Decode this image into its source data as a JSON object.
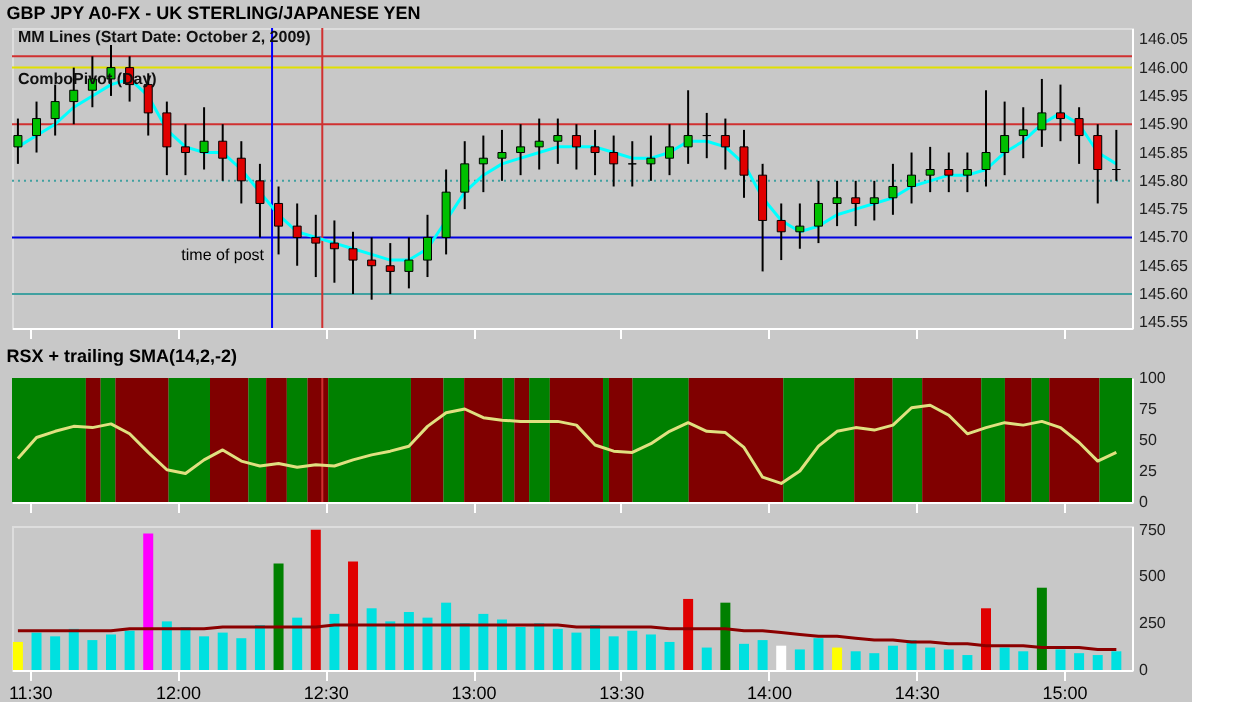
{
  "chart_data": [
    {
      "type": "candlestick",
      "title": "GBP JPY A0-FX - UK STERLING/JAPANESE YEN",
      "annotations": [
        "MM Lines (Start Date: October 2, 2009)",
        "ComboPivot (Day)"
      ],
      "x": [
        11.46,
        11.523,
        11.586,
        11.649,
        11.712,
        11.775,
        11.838,
        11.901,
        11.964,
        12.027,
        12.09,
        12.153,
        12.216,
        12.279,
        12.342,
        12.405,
        12.468,
        12.531,
        12.594,
        12.657,
        12.72,
        12.783,
        12.846,
        12.909,
        12.972,
        13.035,
        13.098,
        13.161,
        13.224,
        13.287,
        13.35,
        13.413,
        13.476,
        13.539,
        13.602,
        13.665,
        13.728,
        13.791,
        13.854,
        13.917,
        13.98,
        14.043,
        14.106,
        14.169,
        14.232,
        14.295,
        14.358,
        14.421,
        14.484,
        14.547,
        14.61,
        14.673,
        14.736,
        14.799,
        14.862,
        14.925,
        14.988,
        15.051,
        15.114,
        15.177
      ],
      "ohlc": [
        [
          145.86,
          145.91,
          145.83,
          145.88
        ],
        [
          145.88,
          145.94,
          145.85,
          145.91
        ],
        [
          145.91,
          145.97,
          145.88,
          145.94
        ],
        [
          145.94,
          146.0,
          145.9,
          145.96
        ],
        [
          145.96,
          146.02,
          145.93,
          145.98
        ],
        [
          145.98,
          146.04,
          145.95,
          146.0
        ],
        [
          146.0,
          146.02,
          145.94,
          145.97
        ],
        [
          145.97,
          145.99,
          145.88,
          145.92
        ],
        [
          145.92,
          145.94,
          145.81,
          145.86
        ],
        [
          145.86,
          145.9,
          145.81,
          145.85
        ],
        [
          145.85,
          145.93,
          145.82,
          145.87
        ],
        [
          145.87,
          145.9,
          145.8,
          145.84
        ],
        [
          145.84,
          145.87,
          145.76,
          145.8
        ],
        [
          145.8,
          145.83,
          145.7,
          145.76
        ],
        [
          145.76,
          145.79,
          145.67,
          145.72
        ],
        [
          145.72,
          145.76,
          145.65,
          145.7
        ],
        [
          145.7,
          145.74,
          145.63,
          145.69
        ],
        [
          145.69,
          145.73,
          145.62,
          145.68
        ],
        [
          145.68,
          145.71,
          145.6,
          145.66
        ],
        [
          145.66,
          145.7,
          145.59,
          145.65
        ],
        [
          145.65,
          145.69,
          145.6,
          145.64
        ],
        [
          145.64,
          145.7,
          145.61,
          145.66
        ],
        [
          145.66,
          145.74,
          145.63,
          145.7
        ],
        [
          145.7,
          145.82,
          145.67,
          145.78
        ],
        [
          145.78,
          145.87,
          145.75,
          145.83
        ],
        [
          145.83,
          145.88,
          145.78,
          145.84
        ],
        [
          145.84,
          145.89,
          145.8,
          145.85
        ],
        [
          145.85,
          145.9,
          145.81,
          145.86
        ],
        [
          145.86,
          145.91,
          145.82,
          145.87
        ],
        [
          145.87,
          145.91,
          145.83,
          145.88
        ],
        [
          145.88,
          145.9,
          145.82,
          145.86
        ],
        [
          145.86,
          145.89,
          145.81,
          145.85
        ],
        [
          145.85,
          145.88,
          145.79,
          145.83
        ],
        [
          145.83,
          145.87,
          145.79,
          145.83
        ],
        [
          145.83,
          145.88,
          145.8,
          145.84
        ],
        [
          145.84,
          145.9,
          145.81,
          145.86
        ],
        [
          145.86,
          145.96,
          145.83,
          145.88
        ],
        [
          145.88,
          145.92,
          145.84,
          145.88
        ],
        [
          145.88,
          145.91,
          145.82,
          145.86
        ],
        [
          145.86,
          145.89,
          145.77,
          145.81
        ],
        [
          145.81,
          145.83,
          145.64,
          145.73
        ],
        [
          145.73,
          145.76,
          145.66,
          145.71
        ],
        [
          145.71,
          145.76,
          145.68,
          145.72
        ],
        [
          145.72,
          145.8,
          145.69,
          145.76
        ],
        [
          145.76,
          145.8,
          145.72,
          145.77
        ],
        [
          145.77,
          145.8,
          145.72,
          145.76
        ],
        [
          145.76,
          145.8,
          145.73,
          145.77
        ],
        [
          145.77,
          145.83,
          145.74,
          145.79
        ],
        [
          145.79,
          145.85,
          145.76,
          145.81
        ],
        [
          145.81,
          145.86,
          145.78,
          145.82
        ],
        [
          145.82,
          145.85,
          145.78,
          145.81
        ],
        [
          145.81,
          145.85,
          145.78,
          145.82
        ],
        [
          145.82,
          145.96,
          145.79,
          145.85
        ],
        [
          145.85,
          145.94,
          145.81,
          145.88
        ],
        [
          145.88,
          145.93,
          145.84,
          145.89
        ],
        [
          145.89,
          145.98,
          145.86,
          145.92
        ],
        [
          145.92,
          145.97,
          145.87,
          145.91
        ],
        [
          145.91,
          145.93,
          145.83,
          145.88
        ],
        [
          145.88,
          145.9,
          145.76,
          145.82
        ],
        [
          145.82,
          145.89,
          145.8,
          145.82
        ]
      ],
      "colors": [
        "#00c000",
        "#00c000",
        "#00c000",
        "#00c000",
        "#00c000",
        "#00c000",
        "#e00000",
        "#e00000",
        "#e00000",
        "#e00000",
        "#00c000",
        "#e00000",
        "#e00000",
        "#e00000",
        "#e00000",
        "#e00000",
        "#e00000",
        "#e00000",
        "#e00000",
        "#e00000",
        "#e00000",
        "#00c000",
        "#00c000",
        "#00c000",
        "#00c000",
        "#00c000",
        "#00c000",
        "#00c000",
        "#00c000",
        "#00c000",
        "#e00000",
        "#e00000",
        "#e00000",
        "#000000",
        "#00c000",
        "#00c000",
        "#00c000",
        "#000000",
        "#e00000",
        "#e00000",
        "#e00000",
        "#e00000",
        "#00c000",
        "#00c000",
        "#00c000",
        "#e00000",
        "#00c000",
        "#00c000",
        "#00c000",
        "#00c000",
        "#e00000",
        "#00c000",
        "#00c000",
        "#00c000",
        "#00c000",
        "#00c000",
        "#e00000",
        "#e00000",
        "#e00000",
        "#000000"
      ],
      "series": [
        {
          "type": "line",
          "color": "#00ffff",
          "values": [
            145.86,
            145.88,
            145.9,
            145.93,
            145.95,
            145.97,
            145.98,
            145.95,
            145.89,
            145.86,
            145.85,
            145.85,
            145.82,
            145.78,
            145.74,
            145.71,
            145.7,
            145.69,
            145.68,
            145.67,
            145.66,
            145.66,
            145.68,
            145.73,
            145.78,
            145.81,
            145.83,
            145.84,
            145.85,
            145.86,
            145.86,
            145.86,
            145.85,
            145.84,
            145.84,
            145.85,
            145.87,
            145.87,
            145.86,
            145.83,
            145.77,
            145.73,
            145.71,
            145.72,
            145.74,
            145.75,
            145.76,
            145.77,
            145.79,
            145.8,
            145.81,
            145.81,
            145.82,
            145.85,
            145.87,
            145.9,
            145.92,
            145.9,
            145.85,
            145.83
          ]
        }
      ],
      "ref_lines": [
        {
          "axis": "y",
          "value": 146.02,
          "color": "#d03030"
        },
        {
          "axis": "y",
          "value": 146.0,
          "color": "#e0e000"
        },
        {
          "axis": "y",
          "value": 145.9,
          "color": "#d03030"
        },
        {
          "axis": "y",
          "value": 145.8,
          "color": "#40a0a0",
          "line_style": "dotted"
        },
        {
          "axis": "y",
          "value": 145.7,
          "color": "#0000e0"
        },
        {
          "axis": "y",
          "value": 145.6,
          "color": "#40a0a0"
        },
        {
          "axis": "x",
          "value": 12.32,
          "color": "#0000ff",
          "label": "time of post"
        },
        {
          "axis": "x",
          "value": 12.49,
          "color": "#d03030"
        }
      ],
      "xlim": [
        11.44,
        15.23
      ],
      "xticks": [
        {
          "value": 11.5,
          "label": null
        },
        {
          "value": 12,
          "label": null
        },
        {
          "value": 12.5,
          "label": null
        },
        {
          "value": 13,
          "label": null
        },
        {
          "value": 13.5,
          "label": null
        },
        {
          "value": 14,
          "label": null
        },
        {
          "value": 14.5,
          "label": null
        },
        {
          "value": 15,
          "label": null
        }
      ],
      "ylim": [
        145.54,
        146.07
      ],
      "yticks": [
        145.55,
        {
          "value": 145.6,
          "label": "145.60"
        },
        145.65,
        {
          "value": 145.7,
          "label": "145.70"
        },
        145.75,
        {
          "value": 145.8,
          "label": "145.80"
        },
        145.85,
        {
          "value": 145.9,
          "label": "145.90"
        },
        145.95,
        {
          "value": 146.0,
          "label": "146.00"
        },
        146.05
      ],
      "tick_labels": "y",
      "grid": false
    },
    {
      "type": "line",
      "title": "RSX + trailing SMA(14,2,-2)",
      "x": [
        11.46,
        11.523,
        11.586,
        11.649,
        11.712,
        11.775,
        11.838,
        11.901,
        11.964,
        12.027,
        12.09,
        12.153,
        12.216,
        12.279,
        12.342,
        12.405,
        12.468,
        12.531,
        12.594,
        12.657,
        12.72,
        12.783,
        12.846,
        12.909,
        12.972,
        13.035,
        13.098,
        13.161,
        13.224,
        13.287,
        13.35,
        13.413,
        13.476,
        13.539,
        13.602,
        13.665,
        13.728,
        13.791,
        13.854,
        13.917,
        13.98,
        14.043,
        14.106,
        14.169,
        14.232,
        14.295,
        14.358,
        14.421,
        14.484,
        14.547,
        14.61,
        14.673,
        14.736,
        14.799,
        14.862,
        14.925,
        14.988,
        15.051,
        15.114,
        15.177
      ],
      "series": [
        {
          "type": "line",
          "color": "#e0e080",
          "values": [
            35,
            52,
            57,
            61,
            60,
            63,
            55,
            40,
            26,
            23,
            34,
            42,
            33,
            29,
            31,
            28,
            30,
            29,
            34,
            38,
            41,
            45,
            61,
            72,
            75,
            68,
            66,
            65,
            65,
            65,
            62,
            46,
            41,
            40,
            47,
            57,
            64,
            57,
            56,
            44,
            20,
            15,
            25,
            45,
            57,
            60,
            58,
            62,
            76,
            78,
            70,
            55,
            60,
            64,
            62,
            65,
            60,
            48,
            33,
            40
          ]
        }
      ],
      "bands": [
        {
          "axis": "x",
          "from": 11.44,
          "to": 11.69,
          "color": "#008000"
        },
        {
          "axis": "x",
          "from": 11.69,
          "to": 11.74,
          "color": "#800000"
        },
        {
          "axis": "x",
          "from": 11.74,
          "to": 11.79,
          "color": "#008000"
        },
        {
          "axis": "x",
          "from": 11.79,
          "to": 11.97,
          "color": "#800000"
        },
        {
          "axis": "x",
          "from": 11.97,
          "to": 12.11,
          "color": "#008000"
        },
        {
          "axis": "x",
          "from": 12.11,
          "to": 12.24,
          "color": "#800000"
        },
        {
          "axis": "x",
          "from": 12.24,
          "to": 12.3,
          "color": "#008000"
        },
        {
          "axis": "x",
          "from": 12.3,
          "to": 12.37,
          "color": "#800000"
        },
        {
          "axis": "x",
          "from": 12.37,
          "to": 12.44,
          "color": "#008000"
        },
        {
          "axis": "x",
          "from": 12.44,
          "to": 12.51,
          "color": "#800000"
        },
        {
          "axis": "x",
          "from": 12.51,
          "to": 12.79,
          "color": "#008000"
        },
        {
          "axis": "x",
          "from": 12.79,
          "to": 12.9,
          "color": "#800000"
        },
        {
          "axis": "x",
          "from": 12.9,
          "to": 12.97,
          "color": "#008000"
        },
        {
          "axis": "x",
          "from": 12.97,
          "to": 13.1,
          "color": "#800000"
        },
        {
          "axis": "x",
          "from": 13.1,
          "to": 13.14,
          "color": "#008000"
        },
        {
          "axis": "x",
          "from": 13.14,
          "to": 13.19,
          "color": "#800000"
        },
        {
          "axis": "x",
          "from": 13.19,
          "to": 13.26,
          "color": "#008000"
        },
        {
          "axis": "x",
          "from": 13.26,
          "to": 13.44,
          "color": "#800000"
        },
        {
          "axis": "x",
          "from": 13.44,
          "to": 13.46,
          "color": "#008000"
        },
        {
          "axis": "x",
          "from": 13.46,
          "to": 13.54,
          "color": "#800000"
        },
        {
          "axis": "x",
          "from": 13.54,
          "to": 13.73,
          "color": "#008000"
        },
        {
          "axis": "x",
          "from": 13.73,
          "to": 14.05,
          "color": "#800000"
        },
        {
          "axis": "x",
          "from": 14.05,
          "to": 14.29,
          "color": "#008000"
        },
        {
          "axis": "x",
          "from": 14.29,
          "to": 14.42,
          "color": "#800000"
        },
        {
          "axis": "x",
          "from": 14.42,
          "to": 14.52,
          "color": "#008000"
        },
        {
          "axis": "x",
          "from": 14.52,
          "to": 14.72,
          "color": "#800000"
        },
        {
          "axis": "x",
          "from": 14.72,
          "to": 14.8,
          "color": "#008000"
        },
        {
          "axis": "x",
          "from": 14.8,
          "to": 14.89,
          "color": "#800000"
        },
        {
          "axis": "x",
          "from": 14.89,
          "to": 14.95,
          "color": "#008000"
        },
        {
          "axis": "x",
          "from": 14.95,
          "to": 15.12,
          "color": "#800000"
        },
        {
          "axis": "x",
          "from": 15.12,
          "to": 15.23,
          "color": "#008000"
        }
      ],
      "ref_lines": [
        {
          "axis": "x",
          "value": 12.49,
          "color": "#d03030"
        }
      ],
      "xlim": [
        11.44,
        15.23
      ],
      "xticks": [
        {
          "value": 11.5,
          "label": null
        },
        {
          "value": 12,
          "label": null
        },
        {
          "value": 12.5,
          "label": null
        },
        {
          "value": 13,
          "label": null
        },
        {
          "value": 13.5,
          "label": null
        },
        {
          "value": 14,
          "label": null
        },
        {
          "value": 14.5,
          "label": null
        },
        {
          "value": 15,
          "label": null
        }
      ],
      "ylim": [
        0,
        100
      ],
      "yticks": [
        0,
        25,
        50,
        75,
        100
      ],
      "tick_labels": "y",
      "grid": false
    },
    {
      "type": "bar",
      "x": [
        11.46,
        11.523,
        11.586,
        11.649,
        11.712,
        11.775,
        11.838,
        11.901,
        11.964,
        12.027,
        12.09,
        12.153,
        12.216,
        12.279,
        12.342,
        12.405,
        12.468,
        12.531,
        12.594,
        12.657,
        12.72,
        12.783,
        12.846,
        12.909,
        12.972,
        13.035,
        13.098,
        13.161,
        13.224,
        13.287,
        13.35,
        13.413,
        13.476,
        13.539,
        13.602,
        13.665,
        13.728,
        13.791,
        13.854,
        13.917,
        13.98,
        14.043,
        14.106,
        14.169,
        14.232,
        14.295,
        14.358,
        14.421,
        14.484,
        14.547,
        14.61,
        14.673,
        14.736,
        14.799,
        14.862,
        14.925,
        14.988,
        15.051,
        15.114,
        15.177
      ],
      "series": [
        {
          "type": "bar",
          "values": [
            150,
            200,
            180,
            220,
            160,
            190,
            210,
            730,
            260,
            230,
            180,
            200,
            170,
            240,
            570,
            280,
            750,
            300,
            580,
            330,
            260,
            310,
            280,
            360,
            250,
            300,
            270,
            230,
            250,
            220,
            200,
            240,
            180,
            210,
            190,
            150,
            380,
            120,
            360,
            140,
            160,
            130,
            110,
            170,
            120,
            100,
            90,
            130,
            160,
            120,
            110,
            80,
            330,
            120,
            100,
            440,
            110,
            90,
            80,
            100
          ],
          "colors": [
            "#ffff00",
            "#00e0e0",
            "#00e0e0",
            "#00e0e0",
            "#00e0e0",
            "#00e0e0",
            "#00e0e0",
            "#ff00ff",
            "#00e0e0",
            "#00e0e0",
            "#00e0e0",
            "#00e0e0",
            "#00e0e0",
            "#00e0e0",
            "#008000",
            "#00e0e0",
            "#e00000",
            "#00e0e0",
            "#e00000",
            "#00e0e0",
            "#00e0e0",
            "#00e0e0",
            "#00e0e0",
            "#00e0e0",
            "#00e0e0",
            "#00e0e0",
            "#00e0e0",
            "#00e0e0",
            "#00e0e0",
            "#00e0e0",
            "#00e0e0",
            "#00e0e0",
            "#00e0e0",
            "#00e0e0",
            "#00e0e0",
            "#00e0e0",
            "#e00000",
            "#00e0e0",
            "#008000",
            "#00e0e0",
            "#00e0e0",
            "#ffffff",
            "#00e0e0",
            "#00e0e0",
            "#ffff00",
            "#00e0e0",
            "#00e0e0",
            "#00e0e0",
            "#00e0e0",
            "#00e0e0",
            "#00e0e0",
            "#00e0e0",
            "#e00000",
            "#00e0e0",
            "#00e0e0",
            "#008000",
            "#00e0e0",
            "#00e0e0",
            "#00e0e0",
            "#00e0e0"
          ]
        },
        {
          "type": "line",
          "color": "#8b0000",
          "values": [
            210,
            210,
            210,
            210,
            210,
            210,
            220,
            220,
            220,
            220,
            220,
            230,
            230,
            230,
            230,
            230,
            230,
            240,
            240,
            240,
            240,
            240,
            240,
            240,
            240,
            240,
            240,
            240,
            240,
            240,
            230,
            230,
            230,
            230,
            230,
            220,
            220,
            220,
            220,
            210,
            210,
            200,
            190,
            180,
            180,
            170,
            160,
            160,
            150,
            150,
            140,
            140,
            130,
            130,
            130,
            120,
            120,
            120,
            110,
            110
          ]
        }
      ],
      "xlim": [
        11.44,
        15.23
      ],
      "xticks": [
        {
          "value": 11.5,
          "label": "11:30"
        },
        {
          "value": 12,
          "label": "12:00"
        },
        {
          "value": 12.5,
          "label": "12:30"
        },
        {
          "value": 13,
          "label": "13:00"
        },
        {
          "value": 13.5,
          "label": "13:30"
        },
        {
          "value": 14,
          "label": "14:00"
        },
        {
          "value": 14.5,
          "label": "14:30"
        },
        {
          "value": 15,
          "label": "15:00"
        }
      ],
      "ylim": [
        0,
        770
      ],
      "yticks": [
        0,
        250,
        500,
        750
      ],
      "grid": false
    }
  ]
}
